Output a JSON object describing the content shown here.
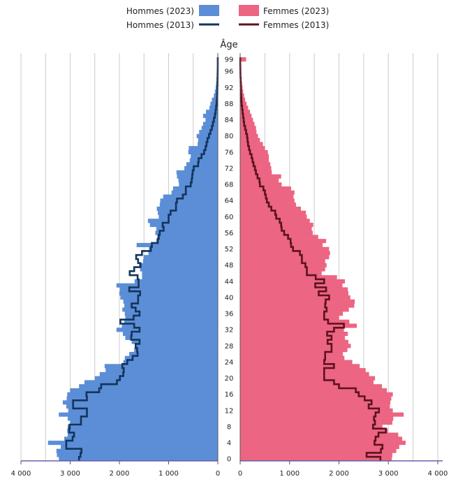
{
  "chart_data": {
    "type": "bar",
    "orientation": "horizontal-pyramid",
    "axis_title": "Âge",
    "age_ticks": [
      0,
      4,
      8,
      12,
      16,
      20,
      24,
      28,
      32,
      36,
      40,
      44,
      48,
      52,
      56,
      60,
      64,
      68,
      72,
      76,
      80,
      84,
      88,
      92,
      96,
      99
    ],
    "x_ticks_left": [
      "4 000",
      "3 000",
      "2 000",
      "1 000",
      "0"
    ],
    "x_ticks_right": [
      "0",
      "1 000",
      "2 000",
      "3 000",
      "4 000"
    ],
    "xlim": [
      0,
      4000
    ],
    "ylim": [
      0,
      99
    ],
    "legend_placement": "top",
    "series": [
      {
        "name": "Hommes (2023)",
        "type": "bar",
        "side": "left",
        "color": "#5b8ed6",
        "values": [
          3230,
          3270,
          3280,
          3190,
          3450,
          3120,
          3050,
          3060,
          3050,
          3000,
          3050,
          3230,
          3040,
          3080,
          3150,
          3070,
          3060,
          3000,
          2820,
          2710,
          2500,
          2400,
          2280,
          2300,
          1920,
          1890,
          1800,
          1700,
          1680,
          1750,
          1880,
          1930,
          2060,
          1950,
          1900,
          1880,
          1890,
          1940,
          1900,
          1920,
          1980,
          2000,
          1990,
          2060,
          1690,
          1540,
          1540,
          1580,
          1600,
          1520,
          1510,
          1410,
          1400,
          1650,
          1250,
          1230,
          1270,
          1250,
          1380,
          1420,
          1200,
          1220,
          1240,
          1180,
          1170,
          1110,
          940,
          910,
          790,
          800,
          830,
          840,
          680,
          640,
          570,
          550,
          600,
          590,
          410,
          400,
          430,
          380,
          330,
          300,
          250,
          300,
          240,
          170,
          150,
          120,
          80,
          60,
          45,
          35,
          28,
          22,
          15,
          12,
          10,
          6
        ]
      },
      {
        "name": "Femmes (2023)",
        "type": "bar",
        "side": "right",
        "color": "#ec6582",
        "values": [
          3070,
          3080,
          3160,
          3220,
          3350,
          3280,
          3200,
          2990,
          2880,
          3080,
          3100,
          3310,
          3090,
          3030,
          3040,
          3060,
          3090,
          2970,
          2870,
          2700,
          2730,
          2610,
          2540,
          2420,
          2270,
          2110,
          2080,
          2170,
          2240,
          2190,
          2120,
          2180,
          2100,
          2360,
          2210,
          2000,
          2080,
          2200,
          2310,
          2320,
          2230,
          2190,
          2180,
          2070,
          2120,
          1960,
          1650,
          1720,
          1750,
          1720,
          1800,
          1820,
          1800,
          1670,
          1740,
          1580,
          1470,
          1450,
          1480,
          1410,
          1350,
          1330,
          1230,
          1130,
          1100,
          1080,
          1100,
          1030,
          840,
          780,
          830,
          640,
          630,
          610,
          580,
          580,
          560,
          500,
          460,
          400,
          360,
          330,
          320,
          290,
          260,
          230,
          200,
          160,
          130,
          100,
          80,
          60,
          50,
          40,
          30,
          20,
          15,
          10,
          6,
          120
        ]
      },
      {
        "name": "Hommes (2013)",
        "type": "line",
        "side": "left",
        "color": "#13345c",
        "values": [
          2820,
          2790,
          2770,
          3080,
          3080,
          2950,
          2920,
          3020,
          3010,
          2780,
          2780,
          2660,
          2660,
          2940,
          2940,
          2660,
          2670,
          2410,
          2370,
          2050,
          1990,
          1920,
          1910,
          1940,
          1840,
          1730,
          1630,
          1640,
          1670,
          1590,
          1760,
          1750,
          1590,
          1700,
          1980,
          1710,
          1590,
          1670,
          1750,
          1620,
          1620,
          1580,
          1800,
          1610,
          1610,
          1630,
          1790,
          1700,
          1570,
          1620,
          1660,
          1540,
          1360,
          1340,
          1220,
          1200,
          1180,
          1100,
          1120,
          1000,
          1000,
          960,
          850,
          850,
          830,
          710,
          650,
          650,
          550,
          530,
          520,
          510,
          490,
          400,
          390,
          330,
          280,
          250,
          230,
          210,
          180,
          150,
          120,
          100,
          80,
          60,
          45,
          35,
          25,
          18,
          14,
          10,
          8,
          6,
          5,
          4,
          3,
          2,
          1,
          1
        ]
      },
      {
        "name": "Femmes (2013)",
        "type": "line",
        "side": "right",
        "color": "#5c1220",
        "values": [
          2840,
          2560,
          2850,
          2880,
          2720,
          2740,
          2800,
          2950,
          2690,
          2730,
          2710,
          2740,
          2810,
          2600,
          2660,
          2520,
          2400,
          2340,
          2000,
          1900,
          1700,
          1700,
          1700,
          1900,
          1700,
          1720,
          1720,
          1850,
          1850,
          1770,
          1850,
          1760,
          1900,
          2100,
          1780,
          1700,
          1700,
          1750,
          1720,
          1730,
          1800,
          1590,
          1740,
          1520,
          1700,
          1530,
          1350,
          1350,
          1320,
          1250,
          1250,
          1210,
          1070,
          1030,
          1020,
          970,
          890,
          840,
          830,
          800,
          730,
          710,
          630,
          580,
          540,
          520,
          500,
          470,
          400,
          390,
          350,
          320,
          300,
          270,
          250,
          230,
          200,
          180,
          160,
          150,
          140,
          120,
          100,
          80,
          70,
          60,
          50,
          40,
          30,
          25,
          20,
          15,
          12,
          10,
          8,
          6,
          4,
          3,
          2,
          1
        ]
      }
    ]
  },
  "legend": {
    "hommes_2023": "Hommes (2023)",
    "femmes_2023": "Femmes (2023)",
    "hommes_2013": "Hommes (2013)",
    "femmes_2013": "Femmes (2013)"
  }
}
